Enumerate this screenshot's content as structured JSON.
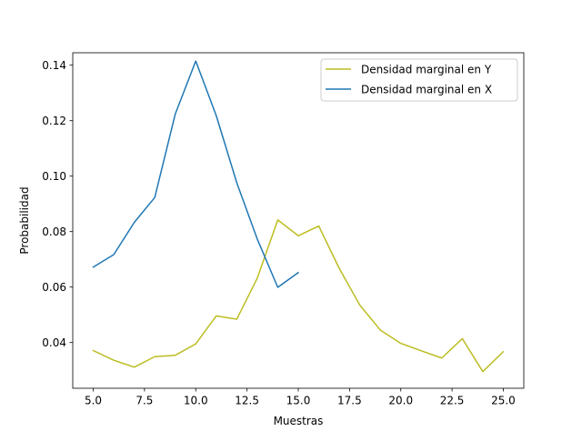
{
  "chart_data": {
    "type": "line",
    "xlabel": "Muestras",
    "ylabel": "Probabilidad",
    "xlim": [
      4.0,
      26.0
    ],
    "ylim": [
      0.0235,
      0.1445
    ],
    "xticks": [
      5.0,
      7.5,
      10.0,
      12.5,
      15.0,
      17.5,
      20.0,
      22.5,
      25.0
    ],
    "xtick_labels": [
      "5.0",
      "7.5",
      "10.0",
      "12.5",
      "15.0",
      "17.5",
      "20.0",
      "22.5",
      "25.0"
    ],
    "yticks": [
      0.04,
      0.06,
      0.08,
      0.1,
      0.12,
      0.14
    ],
    "ytick_labels": [
      "0.04",
      "0.06",
      "0.08",
      "0.10",
      "0.12",
      "0.14"
    ],
    "grid": false,
    "legend_position": "top-right",
    "series": [
      {
        "name": "Densidad marginal en Y",
        "color": "#bcbd22",
        "x": [
          5,
          6,
          7,
          8,
          9,
          10,
          11,
          12,
          13,
          14,
          15,
          16,
          17,
          18,
          19,
          20,
          21,
          22,
          23,
          24,
          25
        ],
        "y": [
          0.0371,
          0.0336,
          0.0311,
          0.0349,
          0.0354,
          0.0395,
          0.0496,
          0.0484,
          0.0632,
          0.0842,
          0.0785,
          0.082,
          0.0667,
          0.0535,
          0.0445,
          0.0397,
          0.037,
          0.0344,
          0.0414,
          0.0295,
          0.0367
        ]
      },
      {
        "name": "Densidad marginal en X",
        "color": "#1f77b4",
        "x": [
          5,
          6,
          7,
          8,
          9,
          10,
          11,
          12,
          13,
          14,
          15
        ],
        "y": [
          0.0672,
          0.0717,
          0.0833,
          0.0923,
          0.1224,
          0.1415,
          0.1218,
          0.0976,
          0.0773,
          0.0599,
          0.0652
        ]
      }
    ]
  }
}
